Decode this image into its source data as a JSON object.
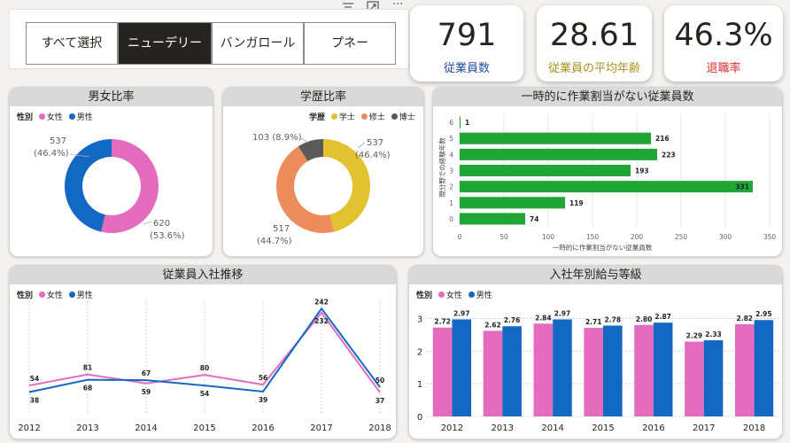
{
  "toolbar": {
    "filter_icon": "filter-icon",
    "focus_icon": "focus-mode-icon",
    "more_label": "···"
  },
  "slicer": {
    "items": [
      {
        "label": "すべて選択",
        "selected": false
      },
      {
        "label": "ニューデリー",
        "selected": true
      },
      {
        "label": "バンガロール",
        "selected": false
      },
      {
        "label": "プネー",
        "selected": false
      }
    ]
  },
  "kpis": [
    {
      "value": "791",
      "label": "従業員数",
      "color": "#1f4e9c"
    },
    {
      "value": "28.61",
      "label": "従業員の平均年齢",
      "color": "#a89220"
    },
    {
      "value": "46.3%",
      "label": "退職率",
      "color": "#e02b2b"
    }
  ],
  "colors": {
    "female": "#e56bbf",
    "male": "#1368c4",
    "bachelor": "#e3c232",
    "master": "#ec8c5a",
    "doctor": "#595959",
    "bench": "#1fa636"
  },
  "gender_donut": {
    "title": "男女比率",
    "legend_title": "性別",
    "legend": [
      "女性",
      "男性"
    ],
    "chart_data": {
      "type": "pie",
      "categories": [
        "女性",
        "男性"
      ],
      "values": [
        620,
        537
      ],
      "labels": [
        {
          "count": "620",
          "pct": "(53.6%)"
        },
        {
          "count": "537",
          "pct": "(46.4%)"
        }
      ]
    }
  },
  "edu_donut": {
    "title": "学歴比率",
    "legend_title": "学歴",
    "legend": [
      "学士",
      "修士",
      "博士"
    ],
    "chart_data": {
      "type": "pie",
      "categories": [
        "学士",
        "修士",
        "博士"
      ],
      "values": [
        537,
        517,
        103
      ],
      "labels": [
        {
          "count": "537",
          "pct": "(46.4%)"
        },
        {
          "count": "517",
          "pct": "(44.7%)"
        },
        {
          "text": "103 (8.9%)"
        }
      ]
    }
  },
  "bench_chart": {
    "title": "一時的に作業割当がない従業員数",
    "chart_data": {
      "type": "bar",
      "orientation": "horizontal",
      "categories": [
        "6",
        "5",
        "4",
        "3",
        "2",
        "1",
        "0"
      ],
      "values": [
        1,
        216,
        223,
        193,
        331,
        119,
        74
      ],
      "xlim": [
        0,
        350
      ],
      "xticks": [
        "0",
        "50",
        "100",
        "150",
        "200",
        "250",
        "300",
        "350"
      ],
      "xlabel": "一時的に作業割当がない従業員数",
      "ylabel": "現分野での経験年数"
    }
  },
  "hire_trend": {
    "title": "従業員入社推移",
    "legend_title": "性別",
    "legend": [
      "女性",
      "男性"
    ],
    "chart_data": {
      "type": "line",
      "categories": [
        "2012",
        "2013",
        "2014",
        "2015",
        "2016",
        "2017",
        "2018"
      ],
      "series": [
        {
          "name": "女性",
          "values": [
            54,
            81,
            59,
            80,
            56,
            232,
            37
          ]
        },
        {
          "name": "男性",
          "values": [
            38,
            68,
            67,
            54,
            39,
            242,
            50
          ]
        }
      ],
      "ylim": [
        0,
        260
      ]
    }
  },
  "salary_grade": {
    "title": "入社年別給与等級",
    "legend_title": "性別",
    "legend": [
      "女性",
      "男性"
    ],
    "chart_data": {
      "type": "bar",
      "categories": [
        "2012",
        "2013",
        "2014",
        "2015",
        "2016",
        "2017",
        "2018"
      ],
      "series": [
        {
          "name": "女性",
          "values": [
            2.72,
            2.62,
            2.84,
            2.71,
            2.8,
            2.29,
            2.82
          ]
        },
        {
          "name": "男性",
          "values": [
            2.97,
            2.76,
            2.97,
            2.78,
            2.87,
            2.33,
            2.95
          ]
        }
      ],
      "ylim": [
        0,
        3.2
      ],
      "yticks": [
        "0",
        "1",
        "2",
        "3"
      ]
    }
  }
}
